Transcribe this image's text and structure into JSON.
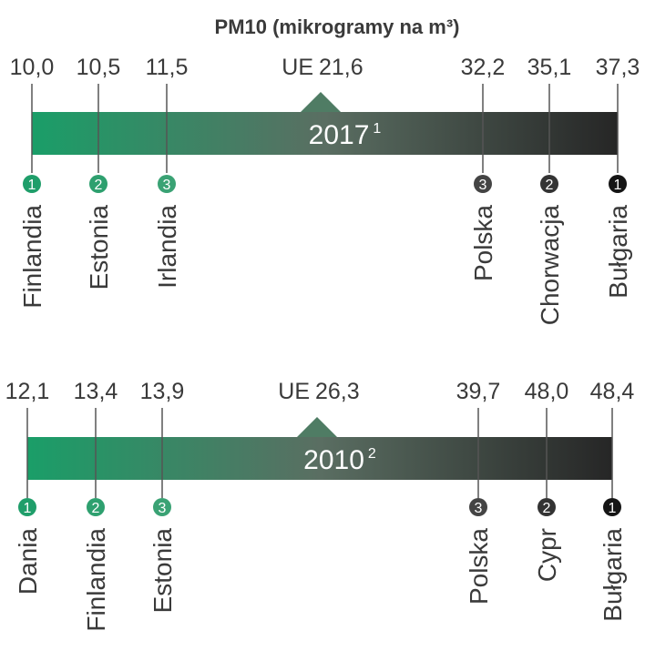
{
  "title": "PM10  (mikrogramy na m³)",
  "panels": [
    {
      "year": "2017",
      "note": "1",
      "eu_label": "UE",
      "eu_value": "21,6",
      "items": [
        {
          "rank": "1",
          "country": "Finlandia",
          "value": "10,0"
        },
        {
          "rank": "2",
          "country": "Estonia",
          "value": "10,5"
        },
        {
          "rank": "3",
          "country": "Irlandia",
          "value": "11,5"
        },
        {
          "rank": "3",
          "country": "Polska",
          "value": "32,2"
        },
        {
          "rank": "2",
          "country": "Chorwacja",
          "value": "35,1"
        },
        {
          "rank": "1",
          "country": "Bułgaria",
          "value": "37,3"
        }
      ]
    },
    {
      "year": "2010",
      "note": "2",
      "eu_label": "UE",
      "eu_value": "26,3",
      "items": [
        {
          "rank": "1",
          "country": "Dania",
          "value": "12,1"
        },
        {
          "rank": "2",
          "country": "Finlandia",
          "value": "13,4"
        },
        {
          "rank": "3",
          "country": "Estonia",
          "value": "13,9"
        },
        {
          "rank": "3",
          "country": "Polska",
          "value": "39,7"
        },
        {
          "rank": "2",
          "country": "Cypr",
          "value": "48,0"
        },
        {
          "rank": "1",
          "country": "Bułgaria",
          "value": "48,4"
        }
      ]
    }
  ]
}
